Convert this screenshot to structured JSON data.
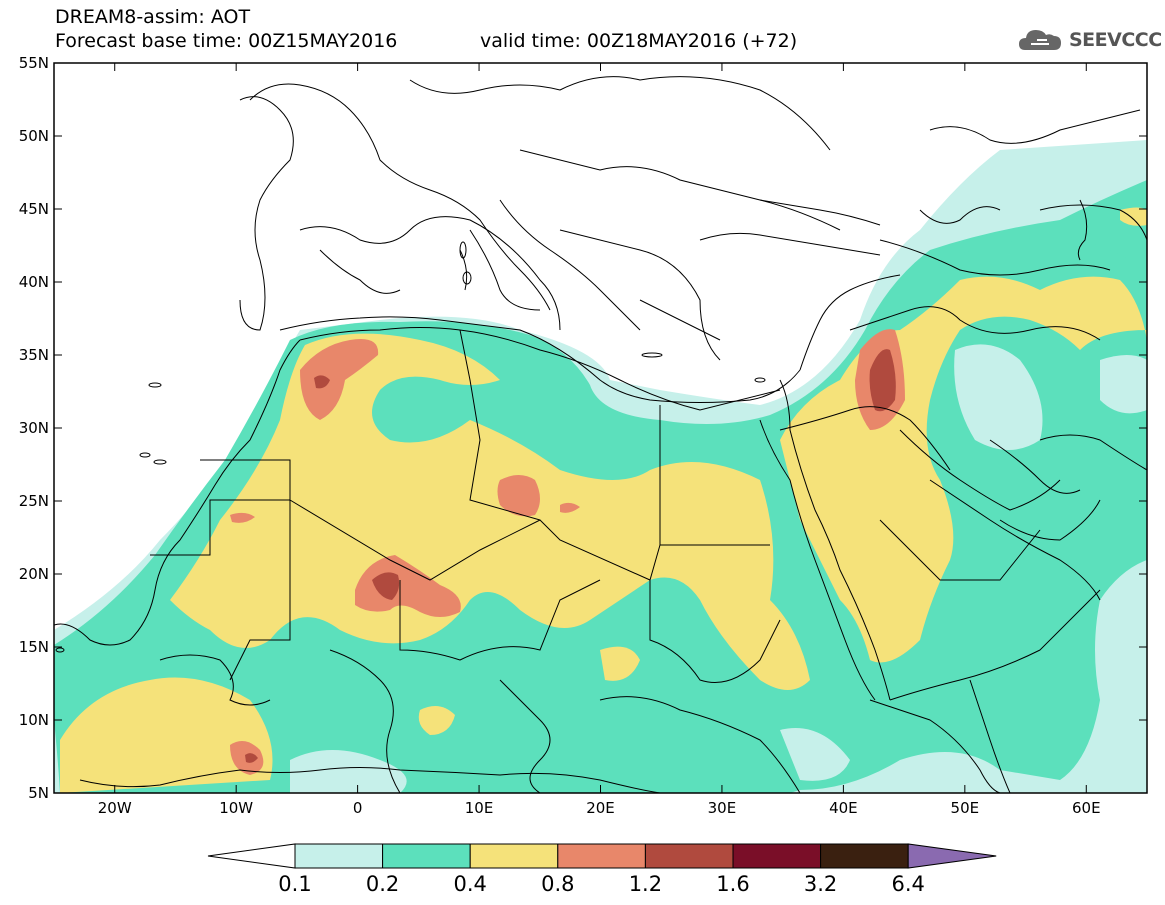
{
  "header": {
    "title": "DREAM8-assim: AOT",
    "base_time": "Forecast base time: 00Z15MAY2016",
    "valid_time": "valid time: 00Z18MAY2016 (+72)"
  },
  "logo": {
    "text": "SEEVCCC",
    "icon": "cloud-icon"
  },
  "map": {
    "lat_labels": [
      "55N",
      "50N",
      "45N",
      "40N",
      "35N",
      "30N",
      "25N",
      "20N",
      "15N",
      "10N",
      "5N"
    ],
    "lon_labels": [
      "20W",
      "10W",
      "0",
      "10E",
      "20E",
      "30E",
      "40E",
      "50E",
      "60E"
    ],
    "lat_range": [
      5,
      55
    ],
    "lon_range": [
      -25,
      65
    ],
    "field": "AOT"
  },
  "colorbar": {
    "labels": [
      "0.1",
      "0.2",
      "0.4",
      "0.8",
      "1.2",
      "1.6",
      "3.2",
      "6.4"
    ],
    "colors": [
      "#c6f0ea",
      "#5ce0bc",
      "#f5e27a",
      "#e8876a",
      "#b04a3e",
      "#7a0e28",
      "#3a2010",
      "#8a6ab0"
    ]
  }
}
